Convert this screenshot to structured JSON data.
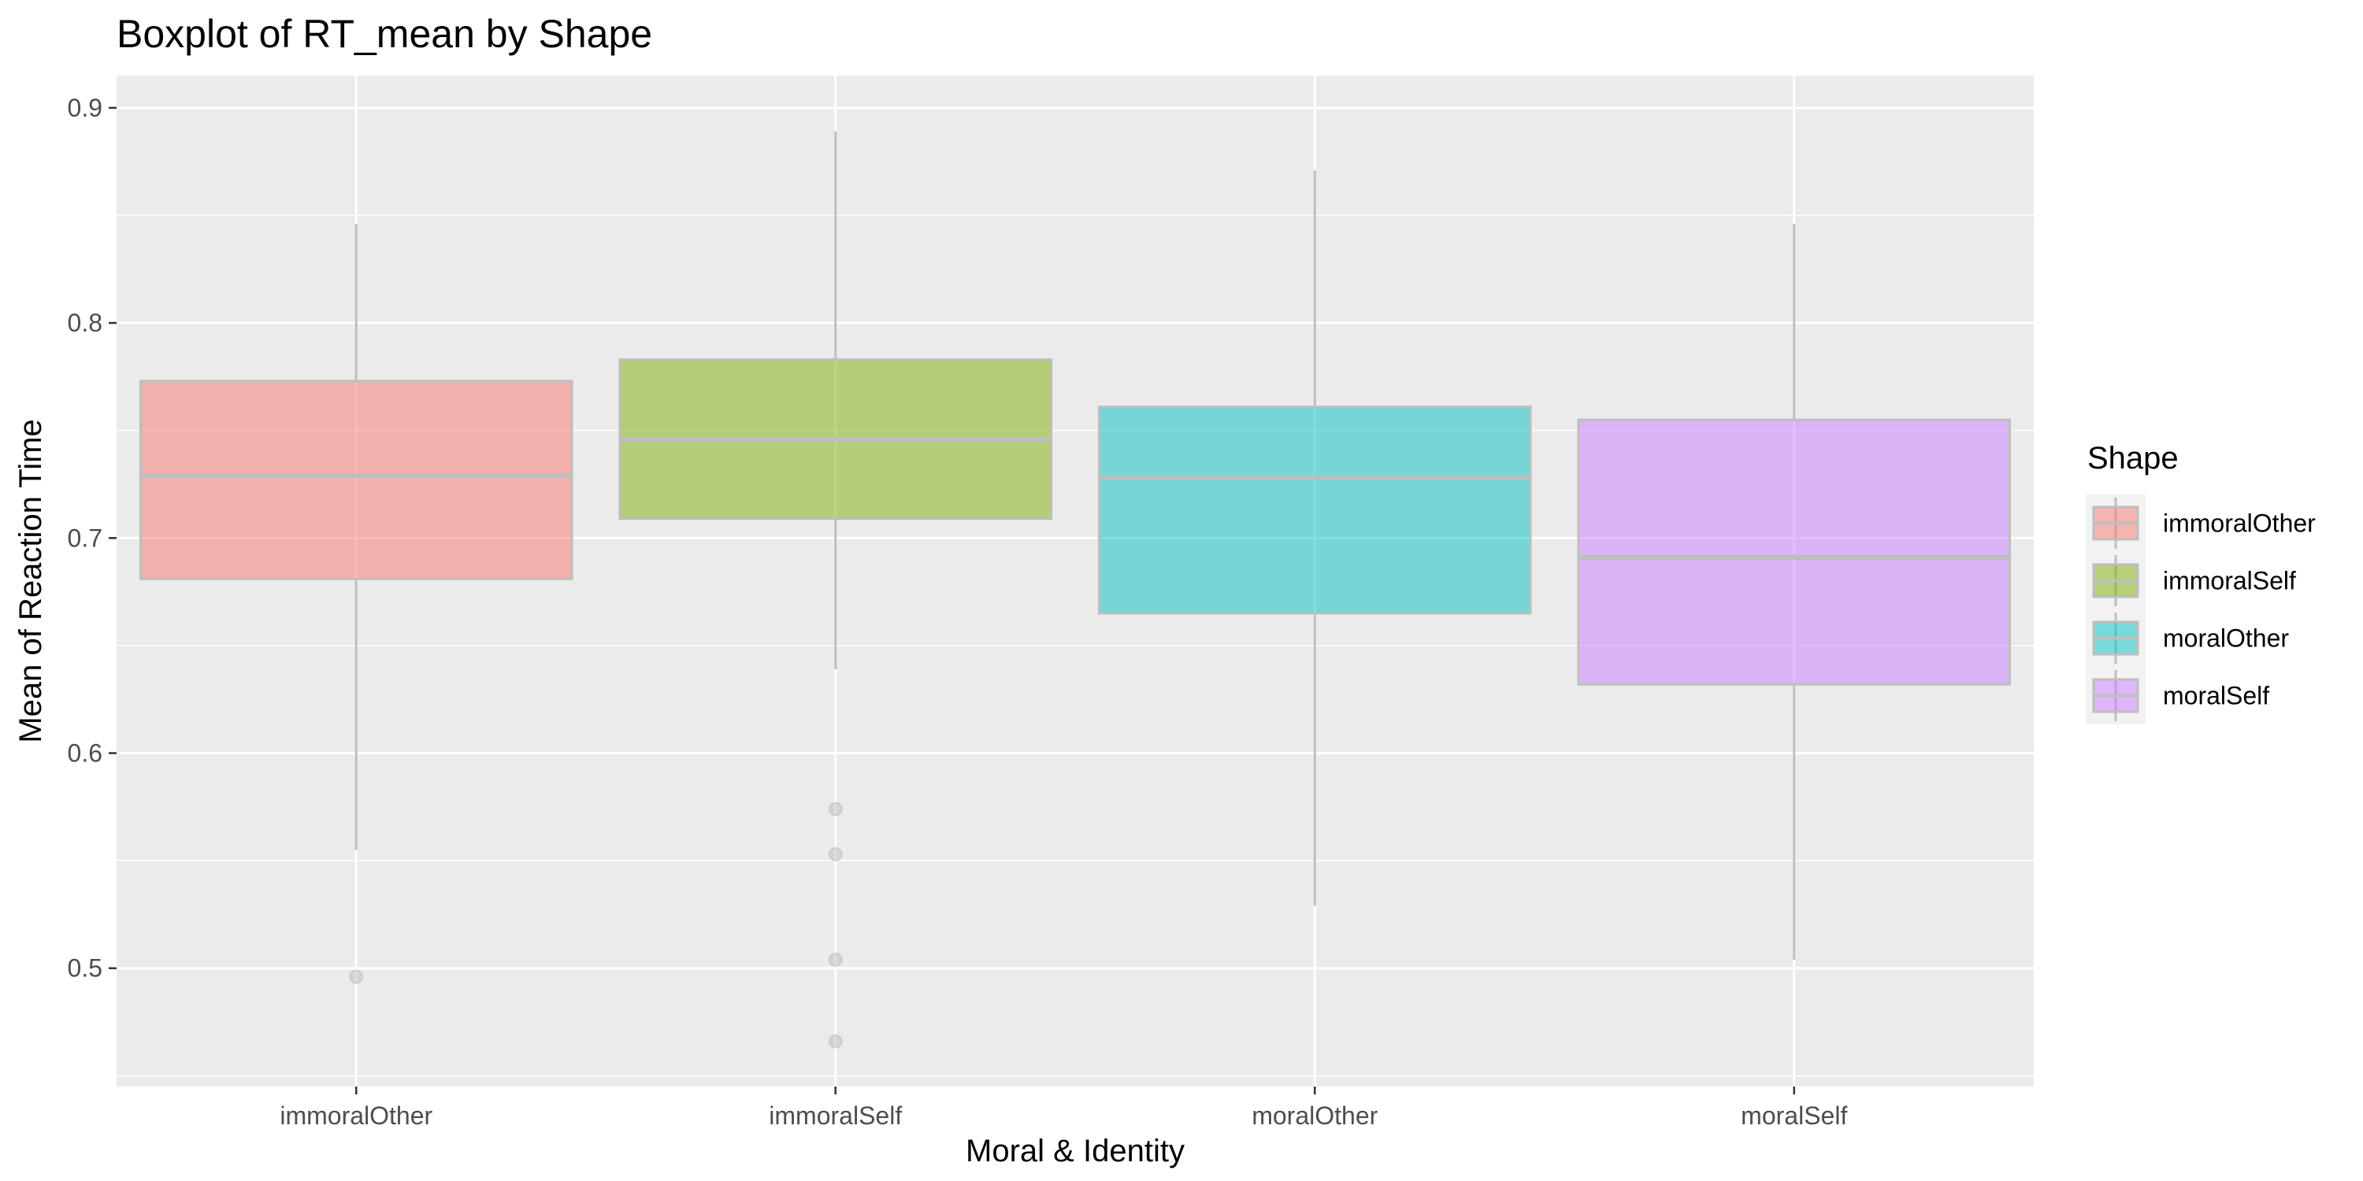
{
  "chart_data": {
    "type": "boxplot",
    "title": "Boxplot of RT_mean by Shape",
    "xlabel": "Moral & Identity",
    "ylabel": "Mean of Reaction Time",
    "ylim": [
      0.445,
      0.915
    ],
    "yticks": [
      0.5,
      0.6,
      0.7,
      0.8,
      0.9
    ],
    "ytick_labels": [
      "0.5",
      "0.6",
      "0.7",
      "0.8",
      "0.9"
    ],
    "grid": true,
    "legend": {
      "title": "Shape",
      "position": "right"
    },
    "categories": [
      "immoralOther",
      "immoralSelf",
      "moralOther",
      "moralSelf"
    ],
    "boxes": [
      {
        "name": "immoralOther",
        "color": "#f8766d",
        "whisker_low": 0.555,
        "q1": 0.681,
        "median": 0.729,
        "q3": 0.773,
        "whisker_high": 0.846,
        "outliers": [
          0.496
        ]
      },
      {
        "name": "immoralSelf",
        "color": "#7cae00",
        "whisker_low": 0.639,
        "q1": 0.709,
        "median": 0.746,
        "q3": 0.783,
        "whisker_high": 0.889,
        "outliers": [
          0.574,
          0.553,
          0.504,
          0.466
        ]
      },
      {
        "name": "moralOther",
        "color": "#00bfc4",
        "whisker_low": 0.529,
        "q1": 0.665,
        "median": 0.728,
        "q3": 0.761,
        "whisker_high": 0.871,
        "outliers": []
      },
      {
        "name": "moralSelf",
        "color": "#c77cff",
        "whisker_low": 0.504,
        "q1": 0.632,
        "median": 0.691,
        "q3": 0.755,
        "whisker_high": 0.846,
        "outliers": []
      }
    ]
  }
}
